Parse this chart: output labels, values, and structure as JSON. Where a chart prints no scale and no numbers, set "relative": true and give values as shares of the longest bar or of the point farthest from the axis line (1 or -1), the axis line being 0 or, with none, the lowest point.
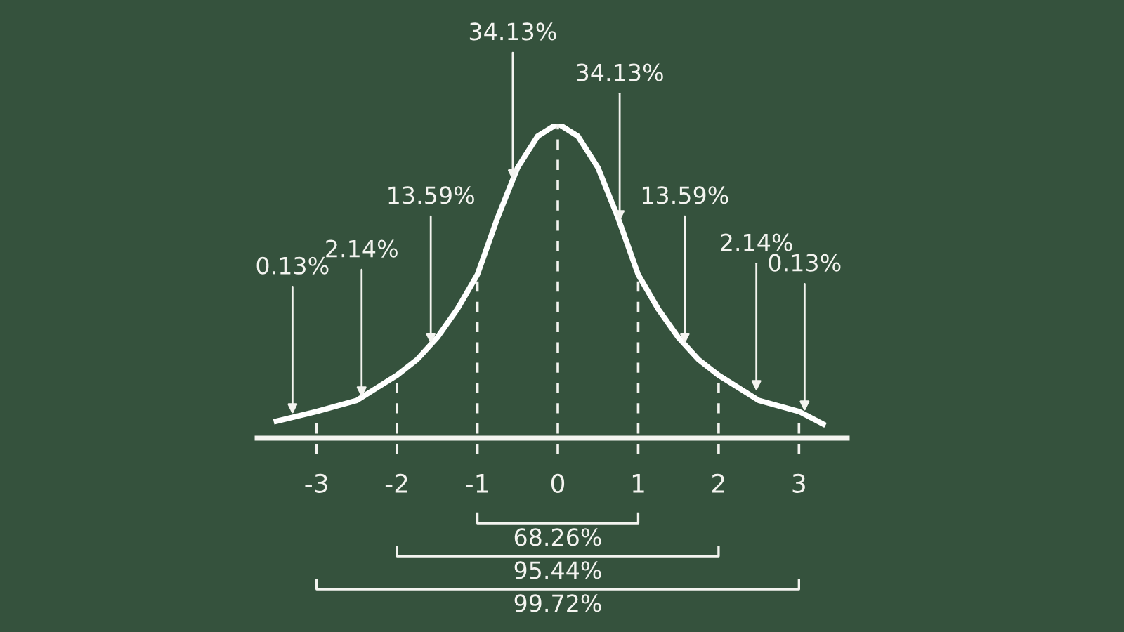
{
  "chart_data": {
    "type": "line",
    "relative": true,
    "x": [
      -3.5,
      -3,
      -2.5,
      -2.25,
      -2,
      -1.75,
      -1.5,
      -1.25,
      -1,
      -0.75,
      -0.5,
      -0.25,
      0,
      0.25,
      0.5,
      0.75,
      1,
      1.25,
      1.5,
      1.75,
      2,
      2.25,
      2.5,
      3,
      3.3
    ],
    "series": [
      {
        "color": "#ffffff",
        "values": [
          0.054,
          0.085,
          0.12,
          0.16,
          0.2,
          0.25,
          0.32,
          0.41,
          0.52,
          0.7,
          0.86,
          0.96,
          1,
          0.96,
          0.86,
          0.7,
          0.52,
          0.41,
          0.32,
          0.25,
          0.2,
          0.16,
          0.12,
          0.085,
          0.045
        ]
      }
    ],
    "xlim": [
      -3.74,
      3.6
    ],
    "xticks": [
      -3,
      -2,
      -1,
      0,
      1,
      2,
      3
    ],
    "grid": false,
    "marker": "none",
    "line_style": "solid",
    "ref_lines": [
      {
        "axis": "x",
        "value": -3,
        "line_style": "dashed"
      },
      {
        "axis": "x",
        "value": -2,
        "line_style": "dashed"
      },
      {
        "axis": "x",
        "value": -1,
        "line_style": "dashed"
      },
      {
        "axis": "x",
        "value": 0,
        "line_style": "dashed"
      },
      {
        "axis": "x",
        "value": 1,
        "line_style": "dashed"
      },
      {
        "axis": "x",
        "value": 2,
        "line_style": "dashed"
      },
      {
        "axis": "x",
        "value": 3,
        "line_style": "dashed"
      }
    ],
    "annotations": [
      "68.26%",
      "95.44%",
      "99.72%",
      {
        "text": "0.13%",
        "x": -3.3,
        "y": 0.076
      },
      {
        "text": "2.14%",
        "x": -2.44,
        "y": 0.13
      },
      {
        "text": "13.59%",
        "x": -1.58,
        "y": 0.3
      },
      {
        "text": "34.13%",
        "x": -0.56,
        "y": 0.82
      },
      {
        "text": "34.13%",
        "x": 0.77,
        "y": 0.69
      },
      {
        "text": "13.59%",
        "x": 1.58,
        "y": 0.3
      },
      {
        "text": "2.14%",
        "x": 2.47,
        "y": 0.15
      },
      {
        "text": "0.13%",
        "x": 3.07,
        "y": 0.085
      }
    ]
  }
}
